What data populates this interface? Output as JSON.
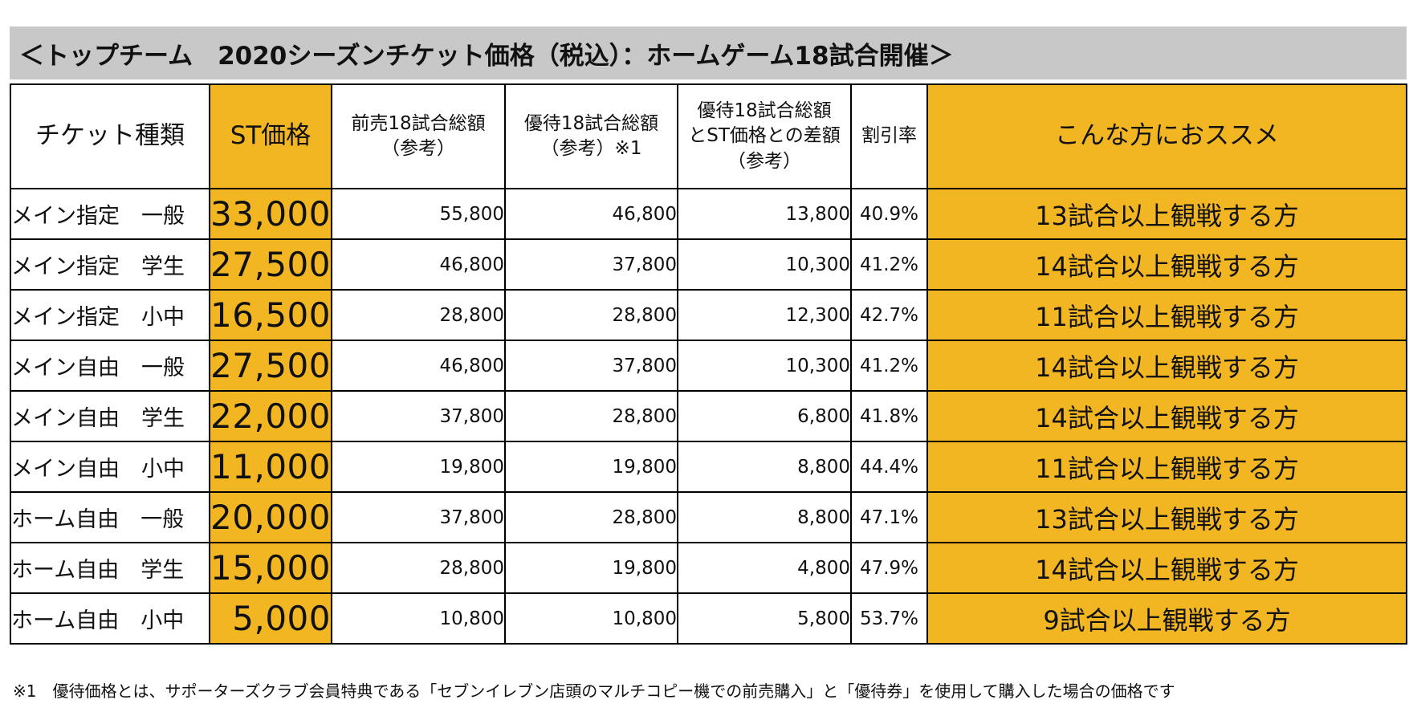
{
  "title": "＜トップチーム　2020シーズンチケット価格（税込）：ホームゲーム18試合開催＞",
  "headers": {
    "type": [
      "チケット種類"
    ],
    "st_price": [
      "ST価格"
    ],
    "presale_total": [
      "前売18試合総額",
      "（参考）"
    ],
    "member_total": [
      "優待18試合総額",
      "（参考）※1"
    ],
    "difference": [
      "優待18試合総額",
      "とST価格との差額",
      "（参考）"
    ],
    "discount_rate": [
      "割引率"
    ],
    "recommend": [
      "こんな方におススメ"
    ]
  },
  "rows": [
    {
      "type": "メイン指定　一般",
      "st_price": "33,000",
      "presale": "55,800",
      "member": "46,800",
      "difference": "13,800",
      "rate": "40.9%",
      "recommend": "13試合以上観戦する方"
    },
    {
      "type": "メイン指定　学生",
      "st_price": "27,500",
      "presale": "46,800",
      "member": "37,800",
      "difference": "10,300",
      "rate": "41.2%",
      "recommend": "14試合以上観戦する方"
    },
    {
      "type": "メイン指定　小中",
      "st_price": "16,500",
      "presale": "28,800",
      "member": "28,800",
      "difference": "12,300",
      "rate": "42.7%",
      "recommend": "11試合以上観戦する方"
    },
    {
      "type": "メイン自由　一般",
      "st_price": "27,500",
      "presale": "46,800",
      "member": "37,800",
      "difference": "10,300",
      "rate": "41.2%",
      "recommend": "14試合以上観戦する方"
    },
    {
      "type": "メイン自由　学生",
      "st_price": "22,000",
      "presale": "37,800",
      "member": "28,800",
      "difference": "6,800",
      "rate": "41.8%",
      "recommend": "14試合以上観戦する方"
    },
    {
      "type": "メイン自由　小中",
      "st_price": "11,000",
      "presale": "19,800",
      "member": "19,800",
      "difference": "8,800",
      "rate": "44.4%",
      "recommend": "11試合以上観戦する方"
    },
    {
      "type": "ホーム自由　一般",
      "st_price": "20,000",
      "presale": "37,800",
      "member": "28,800",
      "difference": "8,800",
      "rate": "47.1%",
      "recommend": "13試合以上観戦する方"
    },
    {
      "type": "ホーム自由　学生",
      "st_price": "15,000",
      "presale": "28,800",
      "member": "19,800",
      "difference": "4,800",
      "rate": "47.9%",
      "recommend": "14試合以上観戦する方"
    },
    {
      "type": "ホーム自由　小中",
      "st_price": "5,000",
      "presale": "10,800",
      "member": "10,800",
      "difference": "5,800",
      "rate": "53.7%",
      "recommend": "9試合以上観戦する方"
    }
  ],
  "footnote": "※1　優待価格とは、サポーターズクラブ会員特典である「セブンイレブン店頭のマルチコピー機での前売購入」と「優待券」を使用して購入した場合の価格です",
  "colors": {
    "highlight": "#f2b623",
    "title_background": "#c8c8c8",
    "border": "#000000"
  }
}
